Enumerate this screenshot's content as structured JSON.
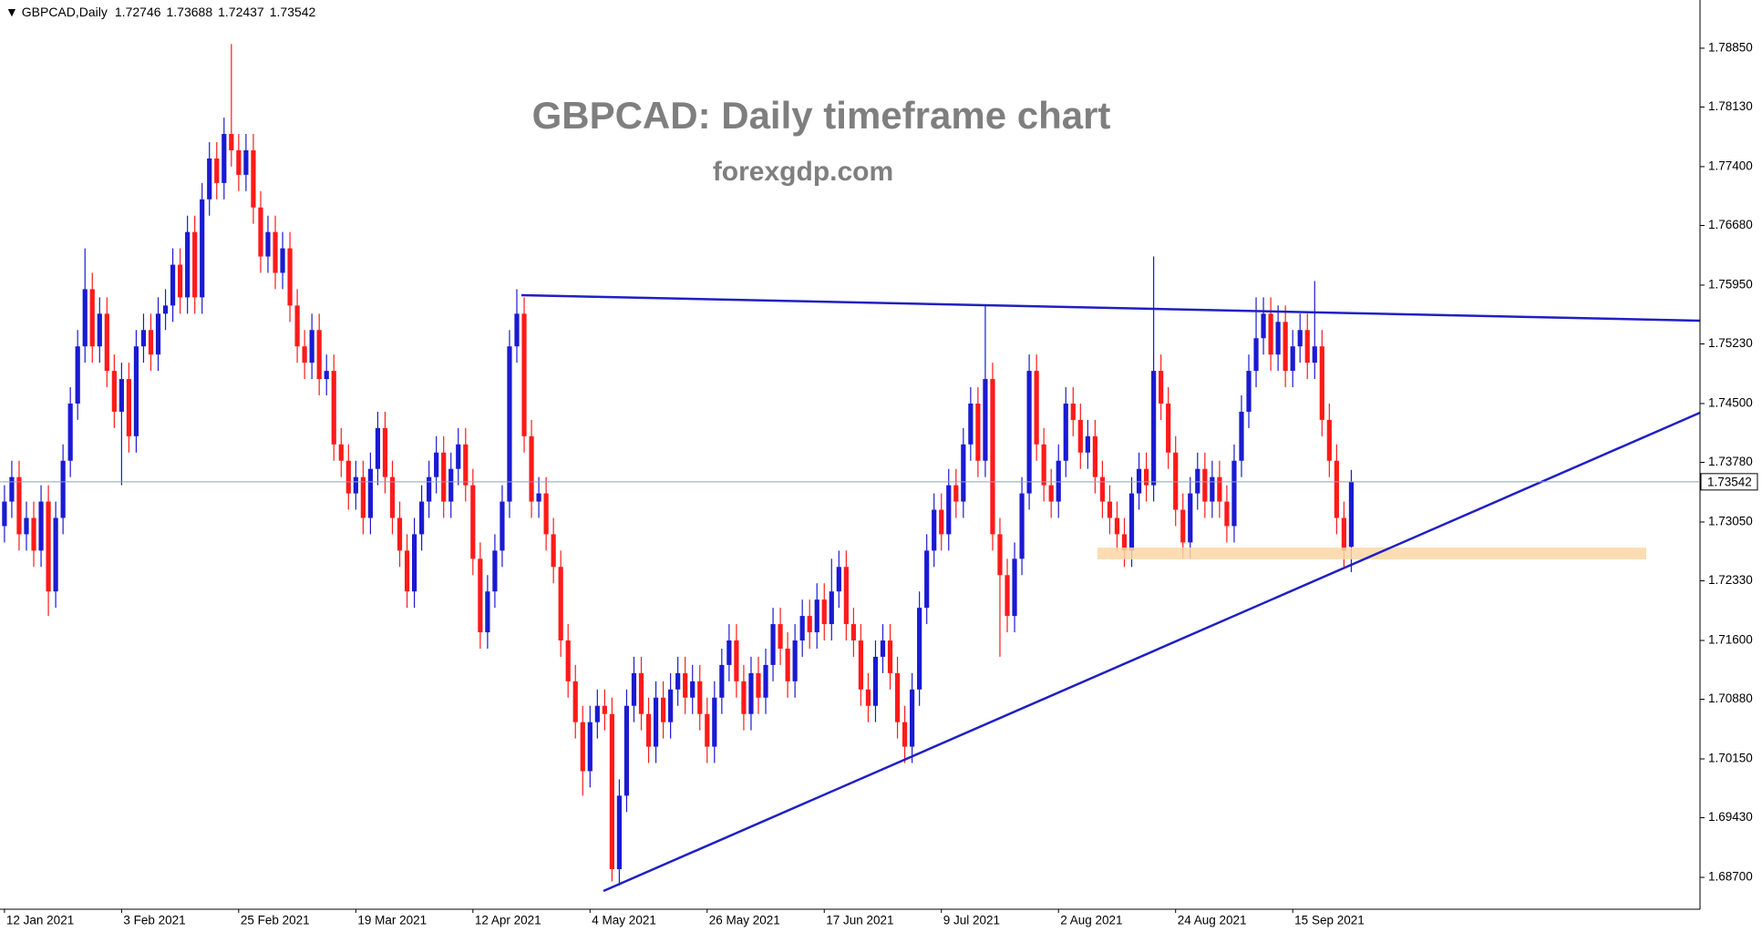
{
  "chart_data": {
    "type": "candlestick",
    "symbol": "GBPCAD,Daily",
    "title": "GBPCAD: Daily timeframe chart",
    "subtitle": "forexgdp.com",
    "up_color": "#1a1ad2",
    "down_color": "#ff1a1a",
    "ylim": [
      1.6831,
      1.7944
    ],
    "yticks": [
      {
        "value": 1.7885,
        "label": "1.78850"
      },
      {
        "value": 1.7813,
        "label": "1.78130"
      },
      {
        "value": 1.774,
        "label": "1.77400"
      },
      {
        "value": 1.7668,
        "label": "1.76680"
      },
      {
        "value": 1.7595,
        "label": "1.75950"
      },
      {
        "value": 1.7523,
        "label": "1.75230"
      },
      {
        "value": 1.745,
        "label": "1.74500"
      },
      {
        "value": 1.7378,
        "label": "1.73780"
      },
      {
        "value": 1.7305,
        "label": "1.73050"
      },
      {
        "value": 1.7233,
        "label": "1.72330"
      },
      {
        "value": 1.716,
        "label": "1.71600"
      },
      {
        "value": 1.7088,
        "label": "1.70880"
      },
      {
        "value": 1.7015,
        "label": "1.70150"
      },
      {
        "value": 1.6943,
        "label": "1.69430"
      },
      {
        "value": 1.687,
        "label": "1.68700"
      }
    ],
    "categories": [
      "12 Jan 2021",
      null,
      null,
      null,
      null,
      null,
      null,
      null,
      null,
      null,
      null,
      null,
      null,
      null,
      null,
      null,
      "3 Feb 2021",
      null,
      null,
      null,
      null,
      null,
      null,
      null,
      null,
      null,
      null,
      null,
      null,
      null,
      null,
      null,
      "25 Feb 2021",
      null,
      null,
      null,
      null,
      null,
      null,
      null,
      null,
      null,
      null,
      null,
      null,
      null,
      null,
      null,
      "19 Mar 2021",
      null,
      null,
      null,
      null,
      null,
      null,
      null,
      null,
      null,
      null,
      null,
      null,
      null,
      null,
      null,
      "12 Apr 2021",
      null,
      null,
      null,
      null,
      null,
      null,
      null,
      null,
      null,
      null,
      null,
      null,
      null,
      null,
      null,
      "4 May 2021",
      null,
      null,
      null,
      null,
      null,
      null,
      null,
      null,
      null,
      null,
      null,
      null,
      null,
      null,
      null,
      "26 May 2021",
      null,
      null,
      null,
      null,
      null,
      null,
      null,
      null,
      null,
      null,
      null,
      null,
      null,
      null,
      null,
      "17 Jun 2021",
      null,
      null,
      null,
      null,
      null,
      null,
      null,
      null,
      null,
      null,
      null,
      null,
      null,
      null,
      null,
      "9 Jul 2021",
      null,
      null,
      null,
      null,
      null,
      null,
      null,
      null,
      null,
      null,
      null,
      null,
      null,
      null,
      null,
      "2 Aug 2021",
      null,
      null,
      null,
      null,
      null,
      null,
      null,
      null,
      null,
      null,
      null,
      null,
      null,
      null,
      null,
      "24 Aug 2021",
      null,
      null,
      null,
      null,
      null,
      null,
      null,
      null,
      null,
      null,
      null,
      null,
      null,
      null,
      null,
      "15 Sep 2021",
      null,
      null,
      null,
      null,
      null,
      null,
      null,
      null
    ],
    "ohlc": [
      [
        1.73,
        1.735,
        1.728,
        1.733
      ],
      [
        1.733,
        1.738,
        1.731,
        1.736
      ],
      [
        1.736,
        1.738,
        1.727,
        1.729
      ],
      [
        1.729,
        1.733,
        1.727,
        1.731
      ],
      [
        1.731,
        1.733,
        1.725,
        1.727
      ],
      [
        1.727,
        1.735,
        1.725,
        1.733
      ],
      [
        1.733,
        1.735,
        1.719,
        1.722
      ],
      [
        1.722,
        1.733,
        1.72,
        1.731
      ],
      [
        1.731,
        1.74,
        1.729,
        1.738
      ],
      [
        1.738,
        1.747,
        1.736,
        1.745
      ],
      [
        1.745,
        1.754,
        1.743,
        1.752
      ],
      [
        1.752,
        1.764,
        1.75,
        1.759
      ],
      [
        1.759,
        1.761,
        1.75,
        1.752
      ],
      [
        1.752,
        1.758,
        1.75,
        1.756
      ],
      [
        1.756,
        1.758,
        1.747,
        1.749
      ],
      [
        1.749,
        1.751,
        1.742,
        1.744
      ],
      [
        1.744,
        1.75,
        1.735,
        1.748
      ],
      [
        1.748,
        1.75,
        1.739,
        1.741
      ],
      [
        1.741,
        1.754,
        1.739,
        1.752
      ],
      [
        1.752,
        1.756,
        1.75,
        1.754
      ],
      [
        1.754,
        1.756,
        1.749,
        1.751
      ],
      [
        1.751,
        1.758,
        1.749,
        1.756
      ],
      [
        1.756,
        1.759,
        1.754,
        1.757
      ],
      [
        1.757,
        1.764,
        1.755,
        1.762
      ],
      [
        1.762,
        1.764,
        1.756,
        1.758
      ],
      [
        1.758,
        1.768,
        1.756,
        1.766
      ],
      [
        1.766,
        1.768,
        1.756,
        1.758
      ],
      [
        1.758,
        1.772,
        1.756,
        1.77
      ],
      [
        1.77,
        1.777,
        1.768,
        1.775
      ],
      [
        1.775,
        1.777,
        1.77,
        1.772
      ],
      [
        1.772,
        1.78,
        1.77,
        1.778
      ],
      [
        1.778,
        1.789,
        1.774,
        1.776
      ],
      [
        1.776,
        1.778,
        1.771,
        1.773
      ],
      [
        1.773,
        1.778,
        1.771,
        1.776
      ],
      [
        1.776,
        1.778,
        1.767,
        1.769
      ],
      [
        1.769,
        1.771,
        1.761,
        1.763
      ],
      [
        1.763,
        1.768,
        1.761,
        1.766
      ],
      [
        1.766,
        1.768,
        1.759,
        1.761
      ],
      [
        1.761,
        1.766,
        1.759,
        1.764
      ],
      [
        1.764,
        1.766,
        1.755,
        1.757
      ],
      [
        1.757,
        1.759,
        1.75,
        1.752
      ],
      [
        1.752,
        1.754,
        1.748,
        1.75
      ],
      [
        1.75,
        1.756,
        1.748,
        1.754
      ],
      [
        1.754,
        1.756,
        1.746,
        1.748
      ],
      [
        1.748,
        1.751,
        1.746,
        1.749
      ],
      [
        1.749,
        1.751,
        1.738,
        1.74
      ],
      [
        1.74,
        1.742,
        1.736,
        1.738
      ],
      [
        1.738,
        1.74,
        1.732,
        1.734
      ],
      [
        1.734,
        1.738,
        1.732,
        1.736
      ],
      [
        1.736,
        1.738,
        1.729,
        1.731
      ],
      [
        1.731,
        1.739,
        1.729,
        1.737
      ],
      [
        1.737,
        1.744,
        1.735,
        1.742
      ],
      [
        1.742,
        1.744,
        1.734,
        1.736
      ],
      [
        1.736,
        1.738,
        1.729,
        1.731
      ],
      [
        1.731,
        1.733,
        1.725,
        1.727
      ],
      [
        1.727,
        1.729,
        1.72,
        1.722
      ],
      [
        1.722,
        1.731,
        1.72,
        1.729
      ],
      [
        1.729,
        1.735,
        1.727,
        1.733
      ],
      [
        1.733,
        1.738,
        1.731,
        1.736
      ],
      [
        1.736,
        1.741,
        1.734,
        1.739
      ],
      [
        1.739,
        1.741,
        1.731,
        1.733
      ],
      [
        1.733,
        1.739,
        1.731,
        1.737
      ],
      [
        1.737,
        1.742,
        1.735,
        1.74
      ],
      [
        1.74,
        1.742,
        1.733,
        1.735
      ],
      [
        1.735,
        1.737,
        1.724,
        1.726
      ],
      [
        1.726,
        1.728,
        1.715,
        1.717
      ],
      [
        1.717,
        1.724,
        1.715,
        1.722
      ],
      [
        1.722,
        1.729,
        1.72,
        1.727
      ],
      [
        1.727,
        1.735,
        1.725,
        1.733
      ],
      [
        1.733,
        1.754,
        1.731,
        1.752
      ],
      [
        1.752,
        1.759,
        1.75,
        1.756
      ],
      [
        1.756,
        1.758,
        1.739,
        1.741
      ],
      [
        1.741,
        1.743,
        1.731,
        1.733
      ],
      [
        1.733,
        1.736,
        1.731,
        1.734
      ],
      [
        1.734,
        1.736,
        1.727,
        1.729
      ],
      [
        1.729,
        1.731,
        1.723,
        1.725
      ],
      [
        1.725,
        1.727,
        1.714,
        1.716
      ],
      [
        1.716,
        1.718,
        1.709,
        1.711
      ],
      [
        1.711,
        1.713,
        1.704,
        1.706
      ],
      [
        1.706,
        1.708,
        1.697,
        1.7
      ],
      [
        1.7,
        1.708,
        1.698,
        1.706
      ],
      [
        1.706,
        1.71,
        1.704,
        1.708
      ],
      [
        1.708,
        1.71,
        1.705,
        1.707
      ],
      [
        1.707,
        1.709,
        1.6865,
        1.688
      ],
      [
        1.688,
        1.699,
        1.686,
        1.697
      ],
      [
        1.697,
        1.71,
        1.695,
        1.708
      ],
      [
        1.708,
        1.714,
        1.706,
        1.712
      ],
      [
        1.712,
        1.714,
        1.705,
        1.707
      ],
      [
        1.707,
        1.709,
        1.701,
        1.703
      ],
      [
        1.703,
        1.711,
        1.701,
        1.709
      ],
      [
        1.709,
        1.711,
        1.704,
        1.706
      ],
      [
        1.706,
        1.712,
        1.704,
        1.71
      ],
      [
        1.71,
        1.714,
        1.708,
        1.712
      ],
      [
        1.712,
        1.714,
        1.707,
        1.709
      ],
      [
        1.709,
        1.713,
        1.707,
        1.711
      ],
      [
        1.711,
        1.713,
        1.705,
        1.707
      ],
      [
        1.707,
        1.709,
        1.701,
        1.703
      ],
      [
        1.703,
        1.711,
        1.701,
        1.709
      ],
      [
        1.709,
        1.715,
        1.707,
        1.713
      ],
      [
        1.713,
        1.718,
        1.711,
        1.716
      ],
      [
        1.716,
        1.718,
        1.709,
        1.711
      ],
      [
        1.711,
        1.713,
        1.705,
        1.707
      ],
      [
        1.707,
        1.714,
        1.705,
        1.712
      ],
      [
        1.712,
        1.714,
        1.707,
        1.709
      ],
      [
        1.709,
        1.715,
        1.707,
        1.713
      ],
      [
        1.713,
        1.72,
        1.711,
        1.718
      ],
      [
        1.718,
        1.72,
        1.713,
        1.715
      ],
      [
        1.715,
        1.717,
        1.709,
        1.711
      ],
      [
        1.711,
        1.718,
        1.709,
        1.716
      ],
      [
        1.716,
        1.721,
        1.714,
        1.719
      ],
      [
        1.719,
        1.721,
        1.715,
        1.717
      ],
      [
        1.717,
        1.723,
        1.715,
        1.721
      ],
      [
        1.721,
        1.723,
        1.716,
        1.718
      ],
      [
        1.718,
        1.726,
        1.716,
        1.722
      ],
      [
        1.722,
        1.727,
        1.72,
        1.725
      ],
      [
        1.725,
        1.727,
        1.716,
        1.718
      ],
      [
        1.718,
        1.72,
        1.714,
        1.716
      ],
      [
        1.716,
        1.718,
        1.708,
        1.71
      ],
      [
        1.71,
        1.712,
        1.706,
        1.708
      ],
      [
        1.708,
        1.716,
        1.706,
        1.714
      ],
      [
        1.714,
        1.718,
        1.712,
        1.716
      ],
      [
        1.716,
        1.718,
        1.71,
        1.712
      ],
      [
        1.712,
        1.714,
        1.704,
        1.706
      ],
      [
        1.706,
        1.708,
        1.701,
        1.703
      ],
      [
        1.703,
        1.712,
        1.701,
        1.71
      ],
      [
        1.71,
        1.722,
        1.708,
        1.72
      ],
      [
        1.72,
        1.729,
        1.718,
        1.727
      ],
      [
        1.727,
        1.734,
        1.725,
        1.732
      ],
      [
        1.732,
        1.734,
        1.727,
        1.729
      ],
      [
        1.729,
        1.737,
        1.727,
        1.735
      ],
      [
        1.735,
        1.737,
        1.731,
        1.733
      ],
      [
        1.733,
        1.742,
        1.731,
        1.74
      ],
      [
        1.74,
        1.747,
        1.738,
        1.745
      ],
      [
        1.745,
        1.747,
        1.736,
        1.738
      ],
      [
        1.738,
        1.757,
        1.736,
        1.748
      ],
      [
        1.748,
        1.75,
        1.727,
        1.729
      ],
      [
        1.729,
        1.731,
        1.714,
        1.724
      ],
      [
        1.724,
        1.726,
        1.717,
        1.719
      ],
      [
        1.719,
        1.728,
        1.717,
        1.726
      ],
      [
        1.726,
        1.736,
        1.724,
        1.734
      ],
      [
        1.734,
        1.751,
        1.732,
        1.749
      ],
      [
        1.749,
        1.751,
        1.738,
        1.74
      ],
      [
        1.74,
        1.742,
        1.733,
        1.735
      ],
      [
        1.735,
        1.737,
        1.731,
        1.733
      ],
      [
        1.733,
        1.74,
        1.731,
        1.738
      ],
      [
        1.738,
        1.747,
        1.736,
        1.745
      ],
      [
        1.745,
        1.747,
        1.741,
        1.743
      ],
      [
        1.743,
        1.745,
        1.737,
        1.739
      ],
      [
        1.739,
        1.743,
        1.737,
        1.741
      ],
      [
        1.741,
        1.743,
        1.734,
        1.736
      ],
      [
        1.736,
        1.738,
        1.731,
        1.733
      ],
      [
        1.733,
        1.735,
        1.729,
        1.731
      ],
      [
        1.731,
        1.733,
        1.727,
        1.729
      ],
      [
        1.729,
        1.731,
        1.725,
        1.727
      ],
      [
        1.727,
        1.736,
        1.725,
        1.734
      ],
      [
        1.734,
        1.739,
        1.732,
        1.737
      ],
      [
        1.737,
        1.739,
        1.733,
        1.735
      ],
      [
        1.735,
        1.763,
        1.733,
        1.749
      ],
      [
        1.749,
        1.751,
        1.743,
        1.745
      ],
      [
        1.745,
        1.747,
        1.737,
        1.739
      ],
      [
        1.739,
        1.741,
        1.73,
        1.732
      ],
      [
        1.732,
        1.734,
        1.726,
        1.728
      ],
      [
        1.728,
        1.736,
        1.726,
        1.734
      ],
      [
        1.734,
        1.739,
        1.732,
        1.737
      ],
      [
        1.737,
        1.739,
        1.731,
        1.733
      ],
      [
        1.733,
        1.738,
        1.731,
        1.736
      ],
      [
        1.736,
        1.738,
        1.731,
        1.733
      ],
      [
        1.733,
        1.735,
        1.728,
        1.73
      ],
      [
        1.73,
        1.74,
        1.728,
        1.738
      ],
      [
        1.738,
        1.746,
        1.736,
        1.744
      ],
      [
        1.744,
        1.751,
        1.742,
        1.749
      ],
      [
        1.749,
        1.758,
        1.747,
        1.753
      ],
      [
        1.753,
        1.758,
        1.751,
        1.756
      ],
      [
        1.756,
        1.758,
        1.749,
        1.751
      ],
      [
        1.751,
        1.757,
        1.749,
        1.755
      ],
      [
        1.755,
        1.757,
        1.747,
        1.749
      ],
      [
        1.749,
        1.754,
        1.747,
        1.752
      ],
      [
        1.752,
        1.756,
        1.75,
        1.754
      ],
      [
        1.754,
        1.756,
        1.748,
        1.75
      ],
      [
        1.75,
        1.76,
        1.748,
        1.752
      ],
      [
        1.752,
        1.754,
        1.741,
        1.743
      ],
      [
        1.743,
        1.745,
        1.736,
        1.738
      ],
      [
        1.738,
        1.74,
        1.729,
        1.731
      ],
      [
        1.731,
        1.733,
        1.725,
        1.727
      ],
      [
        1.72746,
        1.73688,
        1.72437,
        1.73542
      ]
    ]
  }
}
